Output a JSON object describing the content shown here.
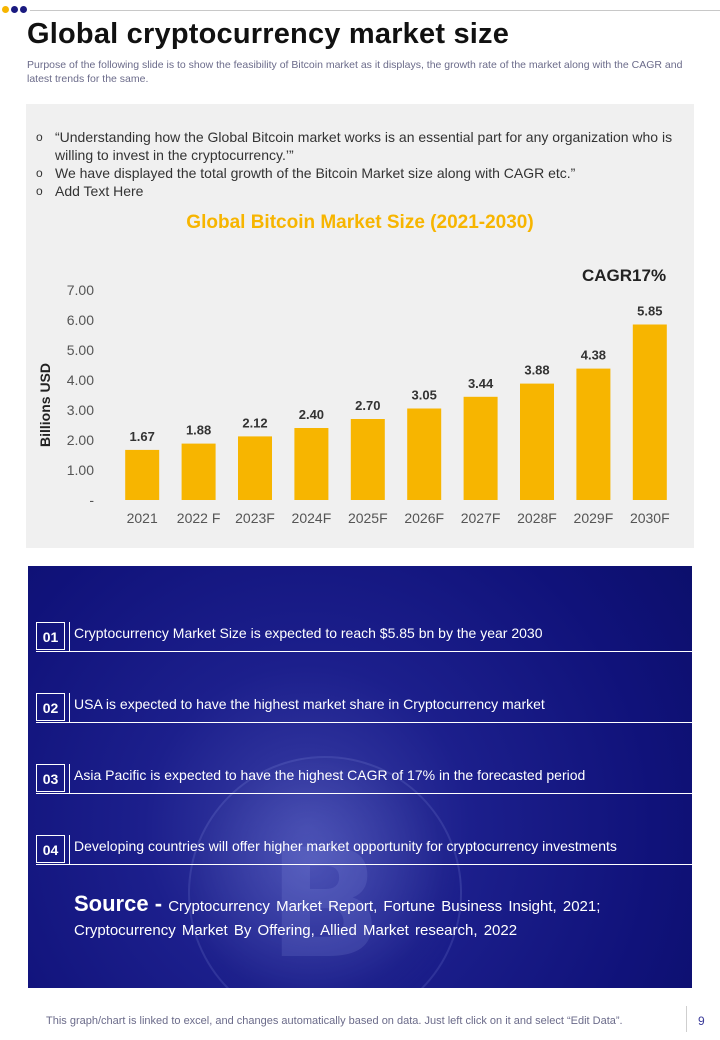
{
  "colors": {
    "accent": "#f7b500",
    "navy": "#141a86",
    "dot_yellow": "#f7b500",
    "dot_navy": "#1a1a80"
  },
  "header": {
    "title": "Global cryptocurrency market size",
    "subtitle": "Purpose of the following slide is to show the feasibility of Bitcoin market as it displays, the growth rate of the market  along with the CAGR and latest trends for the same."
  },
  "bullets": [
    {
      "icon": "circle-bullet-icon",
      "text": "“Understanding how the Global Bitcoin market works is an essential part for any organization who is willing to invest in the cryptocurrency.’”"
    },
    {
      "icon": "circle-bullet-icon",
      "text": "We have displayed the total growth of the Bitcoin Market size along with CAGR etc.”"
    },
    {
      "icon": "circle-bullet-icon",
      "text": "Add Text Here"
    }
  ],
  "cagr_label": "CAGR17%",
  "chart_data": {
    "type": "bar",
    "title": "Global Bitcoin Market Size (2021-2030)",
    "xlabel": "",
    "ylabel": "Billions USD",
    "categories": [
      "2021",
      "2022 F",
      "2023F",
      "2024F",
      "2025F",
      "2026F",
      "2027F",
      "2028F",
      "2029F",
      "2030F"
    ],
    "values": [
      1.67,
      1.88,
      2.12,
      2.4,
      2.7,
      3.05,
      3.44,
      3.88,
      4.38,
      5.85
    ],
    "value_labels": [
      "1.67",
      "1.88",
      "2.12",
      "2.40",
      "2.70",
      "3.05",
      "3.44",
      "3.88",
      "4.38",
      "5.85"
    ],
    "ylim": [
      0,
      7
    ],
    "yticks": [
      0,
      1,
      2,
      3,
      4,
      5,
      6,
      7
    ],
    "ytick_labels": [
      "-",
      "1.00",
      "2.00",
      "3.00",
      "4.00",
      "5.00",
      "6.00",
      "7.00"
    ],
    "bar_color": "#f7b500",
    "grid": false,
    "legend": "none"
  },
  "highlights": [
    {
      "num": "01",
      "text": "Cryptocurrency Market Size is expected to reach $5.85 bn by the year 2030"
    },
    {
      "num": "02",
      "text": "USA is expected to have the highest market share in Cryptocurrency market"
    },
    {
      "num": "03",
      "text": "Asia Pacific is expected to have the highest CAGR of 17% in the forecasted period"
    },
    {
      "num": "04",
      "text": "Developing countries will offer higher market opportunity for cryptocurrency investments"
    }
  ],
  "source": {
    "label": "Source -",
    "text": "Cryptocurrency Market Report, Fortune Business Insight, 2021; Cryptocurrency Market By Offering, Allied Market research, 2022"
  },
  "footer": {
    "note": "This graph/chart is linked to excel,  and changes automatically based on data. Just left click on it and select “Edit Data”.",
    "page": "9"
  }
}
